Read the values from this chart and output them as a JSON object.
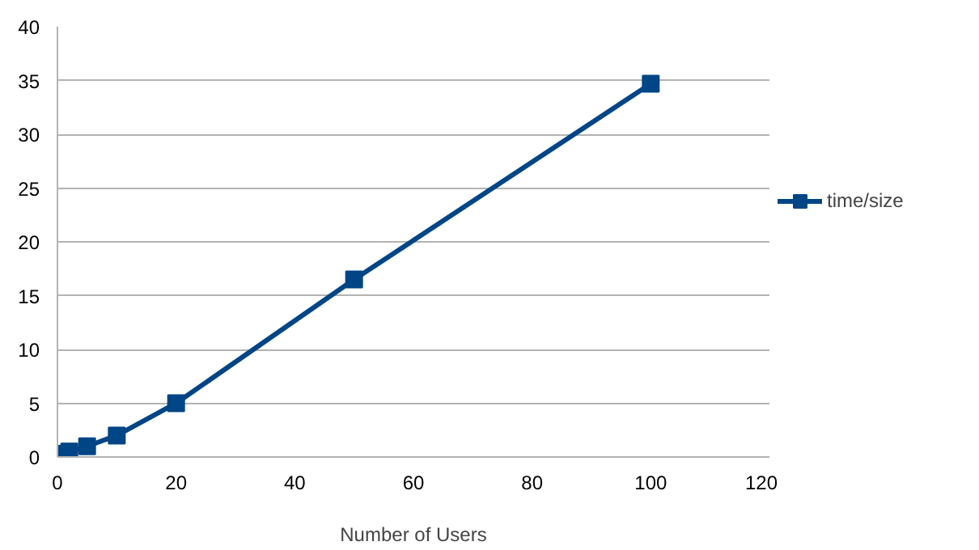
{
  "chart_data": {
    "type": "line",
    "xlabel": "Number of Users",
    "x": [
      1,
      2,
      5,
      10,
      20,
      50,
      100
    ],
    "series": [
      {
        "name": "time/size",
        "color": "#004586",
        "values": [
          0.3,
          0.5,
          1.0,
          2.0,
          5.0,
          16.5,
          34.7
        ]
      }
    ],
    "xlim": [
      0,
      120
    ],
    "xticks": [
      0,
      20,
      40,
      60,
      80,
      100,
      120
    ],
    "ylim": [
      0,
      40
    ],
    "yticks": [
      0,
      5,
      10,
      15,
      20,
      25,
      30,
      35,
      40
    ],
    "grid": "y",
    "legend": "right",
    "marker": "square",
    "line_style": "solid"
  }
}
